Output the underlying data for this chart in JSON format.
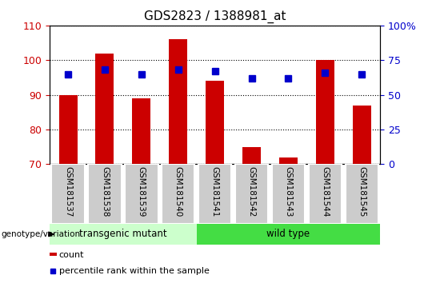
{
  "title": "GDS2823 / 1388981_at",
  "samples": [
    "GSM181537",
    "GSM181538",
    "GSM181539",
    "GSM181540",
    "GSM181541",
    "GSM181542",
    "GSM181543",
    "GSM181544",
    "GSM181545"
  ],
  "count_values": [
    90,
    102,
    89,
    106,
    94,
    75,
    72,
    100,
    87
  ],
  "pct_right_values": [
    65,
    68,
    65,
    68,
    67,
    62,
    62,
    66,
    65
  ],
  "left_ylim": [
    70,
    110
  ],
  "left_yticks": [
    70,
    80,
    90,
    100,
    110
  ],
  "right_ylim": [
    0,
    100
  ],
  "right_yticks": [
    0,
    25,
    50,
    75,
    100
  ],
  "right_yticklabels": [
    "0",
    "25",
    "50",
    "75",
    "100%"
  ],
  "bar_color": "#cc0000",
  "percentile_color": "#0000cc",
  "bar_width": 0.5,
  "group1_label": "transgenic mutant",
  "group2_label": "wild type",
  "group1_indices": [
    0,
    1,
    2,
    3
  ],
  "group2_indices": [
    4,
    5,
    6,
    7,
    8
  ],
  "group1_bg_color": "#ccffcc",
  "group2_bg_color": "#44dd44",
  "sample_box_color": "#cccccc",
  "xlabel_label": "genotype/variation",
  "legend_count_label": "count",
  "legend_percentile_label": "percentile rank within the sample",
  "title_fontsize": 11,
  "tick_color_left": "#cc0000",
  "tick_color_right": "#0000cc",
  "grid_linestyle": "dotted",
  "percentile_marker_size": 6
}
